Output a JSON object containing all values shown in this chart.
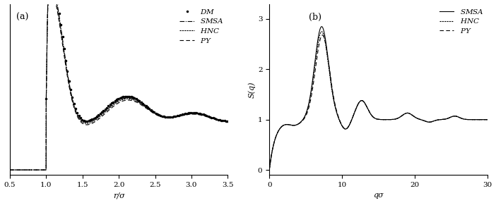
{
  "panel_a": {
    "label": "(a)",
    "xlabel": "r/σ",
    "xlim": [
      0.5,
      3.5
    ],
    "xticks": [
      0.5,
      1.0,
      1.5,
      2.0,
      2.5,
      3.0,
      3.5
    ],
    "ylim": [
      -0.1,
      3.3
    ],
    "yticks": [],
    "legend_labels": [
      "DM",
      "SMSA",
      "HNC",
      "PY"
    ]
  },
  "panel_b": {
    "label": "(b)",
    "xlabel": "qσ",
    "ylabel": "S(q)",
    "xlim": [
      0,
      30
    ],
    "xticks": [
      0,
      10,
      20,
      30
    ],
    "ylim": [
      -0.1,
      3.3
    ],
    "yticks": [
      0,
      1,
      2,
      3
    ],
    "legend_labels": [
      "SMSA",
      "HNC",
      "PY"
    ]
  },
  "background_color": "white",
  "font_family": "serif"
}
